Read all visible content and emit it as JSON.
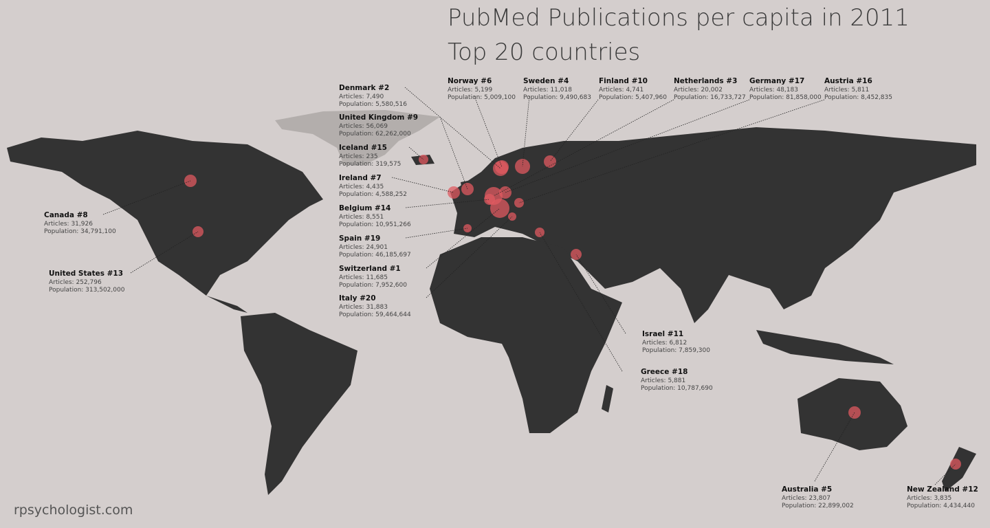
{
  "header": {
    "title_line1": "PubMed Publications per capita in 2011",
    "title_line2": "Top 20 countries"
  },
  "countries": [
    {
      "name": "Denmark #2",
      "articles": "Articles: 7,490",
      "population": "Population: 5,580,516"
    },
    {
      "name": "Norway #6",
      "articles": "Articles: 5,199",
      "population": "Population: 5,009,100"
    },
    {
      "name": "Sweden #4",
      "articles": "Articles: 11,018",
      "population": "Population: 9,490,683"
    },
    {
      "name": "Finland #10",
      "articles": "Articles: 4,741",
      "population": "Population: 5,407,960"
    },
    {
      "name": "Netherlands #3",
      "articles": "Articles: 20,002",
      "population": "Population: 16,733,727"
    },
    {
      "name": "Germany #17",
      "articles": "Articles: 48,183",
      "population": "Population: 81,858,000"
    },
    {
      "name": "Austria #16",
      "articles": "Articles: 5,811",
      "population": "Population: 8,452,835"
    },
    {
      "name": "United Kingdom #9",
      "articles": "Articles: 56,069",
      "population": "Population: 62,262,000"
    },
    {
      "name": "Iceland #15",
      "articles": "Articles: 235",
      "population": "Population: 319,575"
    },
    {
      "name": "Ireland #7",
      "articles": "Articles: 4,435",
      "population": "Population: 4,588,252"
    },
    {
      "name": "Belgium #14",
      "articles": "Articles: 8,551",
      "population": "Population: 10,951,266"
    },
    {
      "name": "Spain #19",
      "articles": "Articles: 24,901",
      "population": "Population: 46,185,697"
    },
    {
      "name": "Switzerland #1",
      "articles": "Articles: 11,685",
      "population": "Population: 7,952,600"
    },
    {
      "name": "Italy #20",
      "articles": "Articles: 31,883",
      "population": "Population: 59,464,644"
    },
    {
      "name": "Canada #8",
      "articles": "Articles: 31,926",
      "population": "Population: 34,791,100"
    },
    {
      "name": "United States #13",
      "articles": "Articles: 252,796",
      "population": "Population: 313,502,000"
    },
    {
      "name": "Israel #11",
      "articles": "Articles: 6,812",
      "population": "Population: 7,859,300"
    },
    {
      "name": "Greece #18",
      "articles": "Articles: 5,881",
      "population": "Population: 10,787,690"
    },
    {
      "name": "Australia #5",
      "articles": "Articles: 23,807",
      "population": "Population: 22,899,002"
    },
    {
      "name": "New Zealand #12",
      "articles": "Articles: 3,835",
      "population": "Population: 4,434,440"
    }
  ],
  "footer": {
    "credit": "rpsychologist.com"
  }
}
